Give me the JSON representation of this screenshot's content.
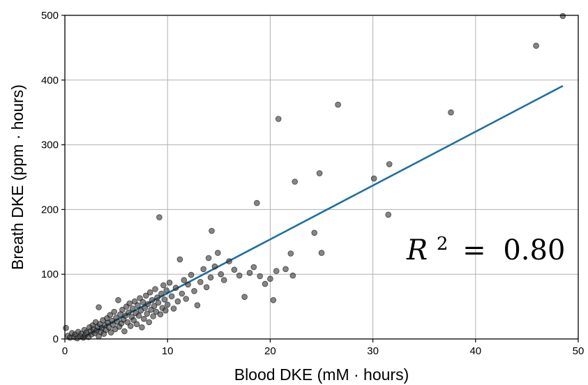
{
  "chart_data": {
    "type": "scatter",
    "xlabel": "Blood DKE (mM · hours)",
    "ylabel": "Breath DKE (ppm · hours)",
    "xlim": [
      0,
      50
    ],
    "ylim": [
      0,
      500
    ],
    "xticks": [
      "0",
      "10",
      "20",
      "30",
      "40",
      "50"
    ],
    "yticks": [
      "0",
      "100",
      "200",
      "300",
      "400",
      "500"
    ],
    "grid": true,
    "annotation": {
      "variable": "R",
      "exponent": "2",
      "operator": "=",
      "value": "0.80"
    },
    "point_color": "#3a3a3a",
    "line_color": "#1f6fa0",
    "fit_line": [
      {
        "x": 1.5,
        "y": 0
      },
      {
        "x": 48.5,
        "y": 391
      }
    ],
    "points": [
      {
        "x": 0.1,
        "y": 17
      },
      {
        "x": 0.3,
        "y": 5
      },
      {
        "x": 0.5,
        "y": 2
      },
      {
        "x": 0.7,
        "y": 9
      },
      {
        "x": 0.9,
        "y": 3
      },
      {
        "x": 1.0,
        "y": 7
      },
      {
        "x": 1.2,
        "y": 1
      },
      {
        "x": 1.3,
        "y": 11
      },
      {
        "x": 1.5,
        "y": 4
      },
      {
        "x": 1.6,
        "y": 8
      },
      {
        "x": 1.8,
        "y": 2
      },
      {
        "x": 1.9,
        "y": 14
      },
      {
        "x": 2.0,
        "y": 6
      },
      {
        "x": 2.1,
        "y": 10
      },
      {
        "x": 2.3,
        "y": 3
      },
      {
        "x": 2.4,
        "y": 18
      },
      {
        "x": 2.5,
        "y": 12
      },
      {
        "x": 2.6,
        "y": 7
      },
      {
        "x": 2.7,
        "y": 21
      },
      {
        "x": 2.8,
        "y": 15
      },
      {
        "x": 2.9,
        "y": 9
      },
      {
        "x": 3.0,
        "y": 26
      },
      {
        "x": 3.1,
        "y": 13
      },
      {
        "x": 3.2,
        "y": 19
      },
      {
        "x": 3.3,
        "y": 4
      },
      {
        "x": 3.3,
        "y": 49
      },
      {
        "x": 3.4,
        "y": 23
      },
      {
        "x": 3.5,
        "y": 11
      },
      {
        "x": 3.6,
        "y": 17
      },
      {
        "x": 3.7,
        "y": 29
      },
      {
        "x": 3.8,
        "y": 8
      },
      {
        "x": 3.9,
        "y": 21
      },
      {
        "x": 4.0,
        "y": 14
      },
      {
        "x": 4.1,
        "y": 32
      },
      {
        "x": 4.2,
        "y": 25
      },
      {
        "x": 4.3,
        "y": 18
      },
      {
        "x": 4.4,
        "y": 37
      },
      {
        "x": 4.5,
        "y": 10
      },
      {
        "x": 4.6,
        "y": 28
      },
      {
        "x": 4.7,
        "y": 22
      },
      {
        "x": 4.8,
        "y": 42
      },
      {
        "x": 4.9,
        "y": 15
      },
      {
        "x": 5.0,
        "y": 33
      },
      {
        "x": 5.1,
        "y": 27
      },
      {
        "x": 5.2,
        "y": 60
      },
      {
        "x": 5.3,
        "y": 19
      },
      {
        "x": 5.4,
        "y": 38
      },
      {
        "x": 5.5,
        "y": 24
      },
      {
        "x": 5.6,
        "y": 45
      },
      {
        "x": 5.7,
        "y": 30
      },
      {
        "x": 5.8,
        "y": 12
      },
      {
        "x": 5.9,
        "y": 36
      },
      {
        "x": 6.0,
        "y": 50
      },
      {
        "x": 6.1,
        "y": 26
      },
      {
        "x": 6.2,
        "y": 41
      },
      {
        "x": 6.3,
        "y": 55
      },
      {
        "x": 6.4,
        "y": 20
      },
      {
        "x": 6.5,
        "y": 34
      },
      {
        "x": 6.6,
        "y": 47
      },
      {
        "x": 6.7,
        "y": 29
      },
      {
        "x": 6.8,
        "y": 58
      },
      {
        "x": 6.9,
        "y": 40
      },
      {
        "x": 7.0,
        "y": 23
      },
      {
        "x": 7.1,
        "y": 52
      },
      {
        "x": 7.2,
        "y": 36
      },
      {
        "x": 7.3,
        "y": 63
      },
      {
        "x": 7.4,
        "y": 44
      },
      {
        "x": 7.5,
        "y": 18
      },
      {
        "x": 7.6,
        "y": 57
      },
      {
        "x": 7.7,
        "y": 31
      },
      {
        "x": 7.8,
        "y": 48
      },
      {
        "x": 7.9,
        "y": 67
      },
      {
        "x": 8.0,
        "y": 39
      },
      {
        "x": 8.1,
        "y": 54
      },
      {
        "x": 8.2,
        "y": 26
      },
      {
        "x": 8.3,
        "y": 72
      },
      {
        "x": 8.4,
        "y": 45
      },
      {
        "x": 8.5,
        "y": 60
      },
      {
        "x": 8.6,
        "y": 35
      },
      {
        "x": 8.7,
        "y": 51
      },
      {
        "x": 8.8,
        "y": 77
      },
      {
        "x": 8.9,
        "y": 42
      },
      {
        "x": 9.0,
        "y": 64
      },
      {
        "x": 9.1,
        "y": 56
      },
      {
        "x": 9.2,
        "y": 188
      },
      {
        "x": 9.3,
        "y": 38
      },
      {
        "x": 9.4,
        "y": 70
      },
      {
        "x": 9.5,
        "y": 48
      },
      {
        "x": 9.6,
        "y": 83
      },
      {
        "x": 9.7,
        "y": 61
      },
      {
        "x": 9.8,
        "y": 44
      },
      {
        "x": 9.9,
        "y": 75
      },
      {
        "x": 10.0,
        "y": 53
      },
      {
        "x": 10.2,
        "y": 87
      },
      {
        "x": 10.4,
        "y": 66
      },
      {
        "x": 10.6,
        "y": 47
      },
      {
        "x": 10.8,
        "y": 79
      },
      {
        "x": 11.0,
        "y": 58
      },
      {
        "x": 11.2,
        "y": 123
      },
      {
        "x": 11.4,
        "y": 70
      },
      {
        "x": 11.6,
        "y": 91
      },
      {
        "x": 11.8,
        "y": 62
      },
      {
        "x": 12.0,
        "y": 84
      },
      {
        "x": 12.3,
        "y": 99
      },
      {
        "x": 12.6,
        "y": 74
      },
      {
        "x": 12.9,
        "y": 52
      },
      {
        "x": 13.2,
        "y": 88
      },
      {
        "x": 13.5,
        "y": 108
      },
      {
        "x": 13.8,
        "y": 80
      },
      {
        "x": 14.0,
        "y": 125
      },
      {
        "x": 14.2,
        "y": 95
      },
      {
        "x": 14.3,
        "y": 167
      },
      {
        "x": 14.6,
        "y": 112
      },
      {
        "x": 14.9,
        "y": 133
      },
      {
        "x": 15.2,
        "y": 100
      },
      {
        "x": 15.5,
        "y": 91
      },
      {
        "x": 16.0,
        "y": 120
      },
      {
        "x": 16.5,
        "y": 107
      },
      {
        "x": 17.0,
        "y": 98
      },
      {
        "x": 17.5,
        "y": 65
      },
      {
        "x": 18.0,
        "y": 102
      },
      {
        "x": 18.4,
        "y": 111
      },
      {
        "x": 18.7,
        "y": 210
      },
      {
        "x": 19.0,
        "y": 97
      },
      {
        "x": 19.5,
        "y": 85
      },
      {
        "x": 20.0,
        "y": 93
      },
      {
        "x": 20.3,
        "y": 60
      },
      {
        "x": 20.6,
        "y": 105
      },
      {
        "x": 20.8,
        "y": 340
      },
      {
        "x": 21.5,
        "y": 108
      },
      {
        "x": 22.0,
        "y": 132
      },
      {
        "x": 22.2,
        "y": 98
      },
      {
        "x": 22.4,
        "y": 243
      },
      {
        "x": 24.3,
        "y": 164
      },
      {
        "x": 24.8,
        "y": 256
      },
      {
        "x": 25.0,
        "y": 133
      },
      {
        "x": 26.6,
        "y": 362
      },
      {
        "x": 30.1,
        "y": 248
      },
      {
        "x": 31.5,
        "y": 192
      },
      {
        "x": 31.6,
        "y": 270
      },
      {
        "x": 37.6,
        "y": 350
      },
      {
        "x": 45.9,
        "y": 453
      },
      {
        "x": 48.5,
        "y": 499
      }
    ]
  }
}
